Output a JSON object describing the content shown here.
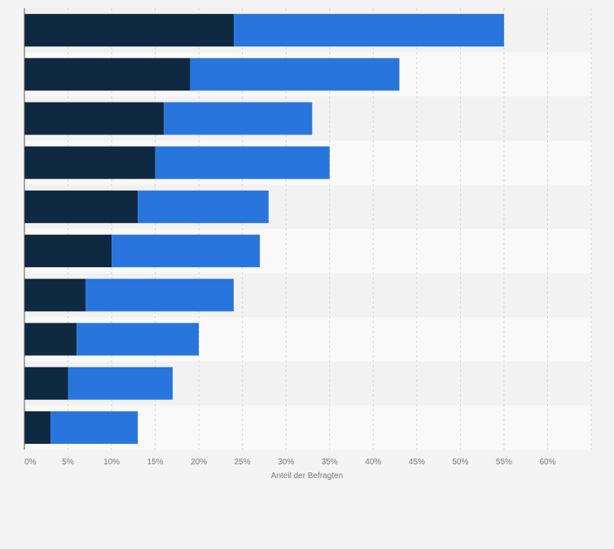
{
  "chart_data": {
    "type": "bar",
    "orientation": "horizontal",
    "stacked": true,
    "title": "",
    "xlabel": "Anteil der Befragten",
    "ylabel": "",
    "xlim": [
      0,
      65
    ],
    "grid": true,
    "x_ticks": [
      "0%",
      "5%",
      "10%",
      "15%",
      "20%",
      "25%",
      "30%",
      "35%",
      "40%",
      "45%",
      "50%",
      "55%",
      "60%"
    ],
    "categories": [
      "",
      "",
      "",
      "",
      "",
      "",
      "",
      "",
      "",
      ""
    ],
    "series": [
      {
        "color": "#0f2a40",
        "values": [
          24,
          19,
          16,
          15,
          13,
          10,
          7,
          6,
          5,
          3
        ]
      },
      {
        "color": "#2876dd",
        "values": [
          31,
          24,
          17,
          20,
          15,
          17,
          17,
          14,
          12,
          10
        ]
      }
    ]
  }
}
